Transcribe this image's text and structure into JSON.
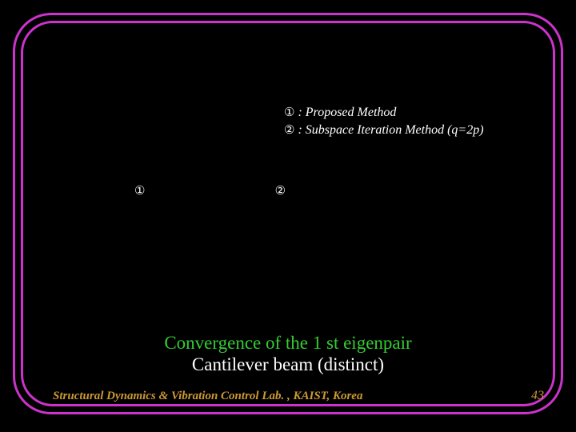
{
  "colors": {
    "background": "#000000",
    "frame": "#cc33cc",
    "text": "#ffffff",
    "caption_line1": "#33cc33",
    "caption_line2": "#ffffff",
    "footer": "#cc9933"
  },
  "legend": {
    "marker1": "①",
    "label1": ": Proposed Method",
    "marker2": "②",
    "label2": ": Subspace Iteration Method (q=2p)"
  },
  "markers": {
    "m1": "①",
    "m2": "②"
  },
  "caption": {
    "line1": "Convergence of the 1 st eigenpair",
    "line2": "Cantilever beam (distinct)"
  },
  "footer": {
    "lab": "Structural Dynamics & Vibration Control Lab. , KAIST, Korea",
    "page": "43"
  }
}
